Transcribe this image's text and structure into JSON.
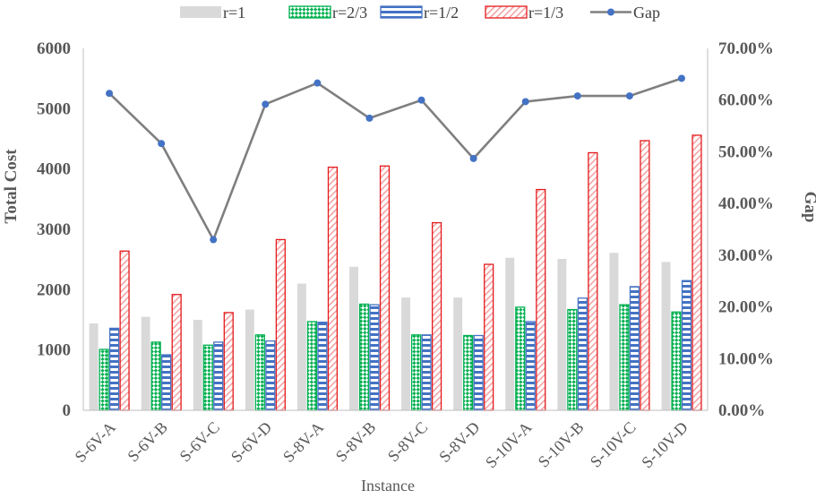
{
  "chart_data": {
    "type": "bar",
    "xlabel": "Instance",
    "ylabel": "Total  Cost",
    "y2label": "Gap",
    "ylim": [
      0,
      6000
    ],
    "y2lim": [
      0,
      0.7
    ],
    "y_ticks": [
      "0",
      "1000",
      "2000",
      "3000",
      "4000",
      "5000",
      "6000"
    ],
    "y2_ticks": [
      "0.00%",
      "10.00%",
      "20.00%",
      "30.00%",
      "40.00%",
      "50.00%",
      "60.00%",
      "70.00%"
    ],
    "grid": false,
    "legend_position": "top",
    "categories": [
      "S-6V-A",
      "S-6V-B",
      "S-6V-C",
      "S-6V-D",
      "S-8V-A",
      "S-8V-B",
      "S-8V-C",
      "S-8V-D",
      "S-10V-A",
      "S-10V-B",
      "S-10V-C",
      "S-10V-D"
    ],
    "series": [
      {
        "name": "r=1",
        "kind": "bar",
        "pattern": "solid",
        "color": "#d9d9d9",
        "values": [
          1440,
          1550,
          1500,
          1670,
          2100,
          2380,
          1870,
          1870,
          2530,
          2510,
          2610,
          2460
        ]
      },
      {
        "name": "r=2/3",
        "kind": "bar",
        "pattern": "diagonal-checker",
        "color": "#00b050",
        "values": [
          1010,
          1130,
          1080,
          1250,
          1470,
          1760,
          1250,
          1240,
          1710,
          1670,
          1750,
          1630
        ]
      },
      {
        "name": "r=1/2",
        "kind": "bar",
        "pattern": "horizontal-stripes",
        "color": "#4472c4",
        "values": [
          1360,
          920,
          1130,
          1150,
          1460,
          1750,
          1250,
          1240,
          1470,
          1860,
          2050,
          2150
        ]
      },
      {
        "name": "r=1/3",
        "kind": "bar",
        "pattern": "diagonal-stripes",
        "color": "#e31a1c",
        "values": [
          2640,
          1920,
          1620,
          2830,
          4030,
          4050,
          3110,
          2420,
          3660,
          4270,
          4470,
          4560
        ]
      },
      {
        "name": "Gap",
        "kind": "line",
        "axis": "right",
        "color": "#7f7f7f",
        "marker_color": "#4472c4",
        "values": [
          0.613,
          0.516,
          0.33,
          0.592,
          0.633,
          0.565,
          0.6,
          0.487,
          0.597,
          0.608,
          0.608,
          0.642
        ]
      }
    ]
  }
}
